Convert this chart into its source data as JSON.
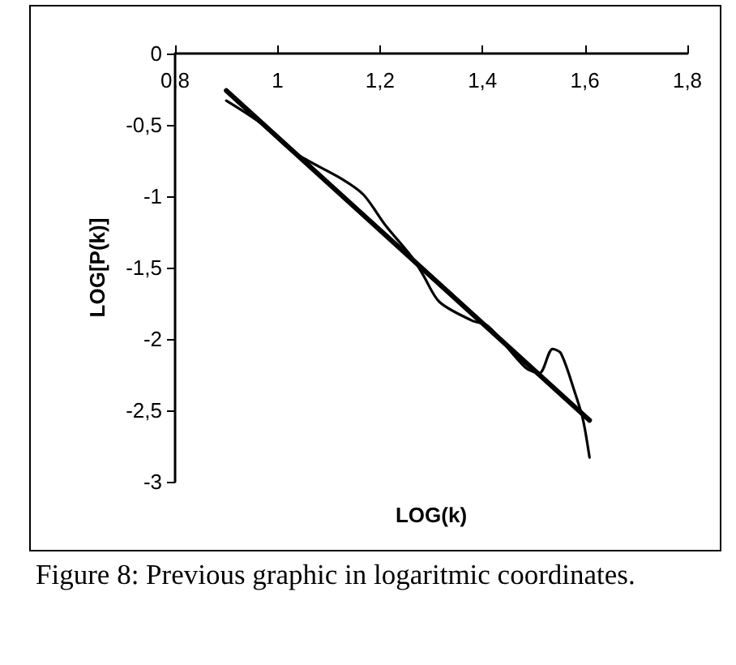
{
  "chart_data": {
    "type": "line",
    "xlabel": "LOG(k)",
    "ylabel": "LOG[P(k)]",
    "annotations": [
      "Figure 8: Previous graphic in logaritmic coordinates."
    ],
    "xlim": [
      0.8,
      1.8
    ],
    "ylim": [
      -3,
      0
    ],
    "xticks": [
      {
        "value": 0.8,
        "label": "0,8"
      },
      {
        "value": 1,
        "label": "1"
      },
      {
        "value": 1.2,
        "label": "1,2"
      },
      {
        "value": 1.4,
        "label": "1,4"
      },
      {
        "value": 1.6,
        "label": "1,6"
      },
      {
        "value": 1.8,
        "label": "1,8"
      }
    ],
    "yticks": [
      {
        "value": 0,
        "label": "0"
      },
      {
        "value": -0.5,
        "label": "-0,5"
      },
      {
        "value": -1,
        "label": "-1"
      },
      {
        "value": -1.5,
        "label": "-1,5"
      },
      {
        "value": -2,
        "label": "-2"
      },
      {
        "value": -2.5,
        "label": "-2,5"
      },
      {
        "value": -3,
        "label": "-3"
      }
    ],
    "grid": false,
    "marker": "none",
    "line_style": "solid",
    "series": [
      {
        "color": "#000000",
        "x": [
          0.9,
          0.968,
          1.031,
          1.126,
          1.168,
          1.21,
          1.263,
          1.284,
          1.316,
          1.379,
          1.411,
          1.484,
          1.511,
          1.537,
          1.553,
          1.58,
          1.596,
          1.609
        ],
        "values": [
          -0.33,
          -0.49,
          -0.69,
          -0.88,
          -0.99,
          -1.2,
          -1.43,
          -1.55,
          -1.74,
          -1.87,
          -1.91,
          -2.2,
          -2.24,
          -2.07,
          -2.1,
          -2.37,
          -2.56,
          -2.83
        ]
      },
      {
        "color": "#000000",
        "x": [
          0.9,
          1.609
        ],
        "values": [
          -0.26,
          -2.57
        ]
      }
    ]
  }
}
